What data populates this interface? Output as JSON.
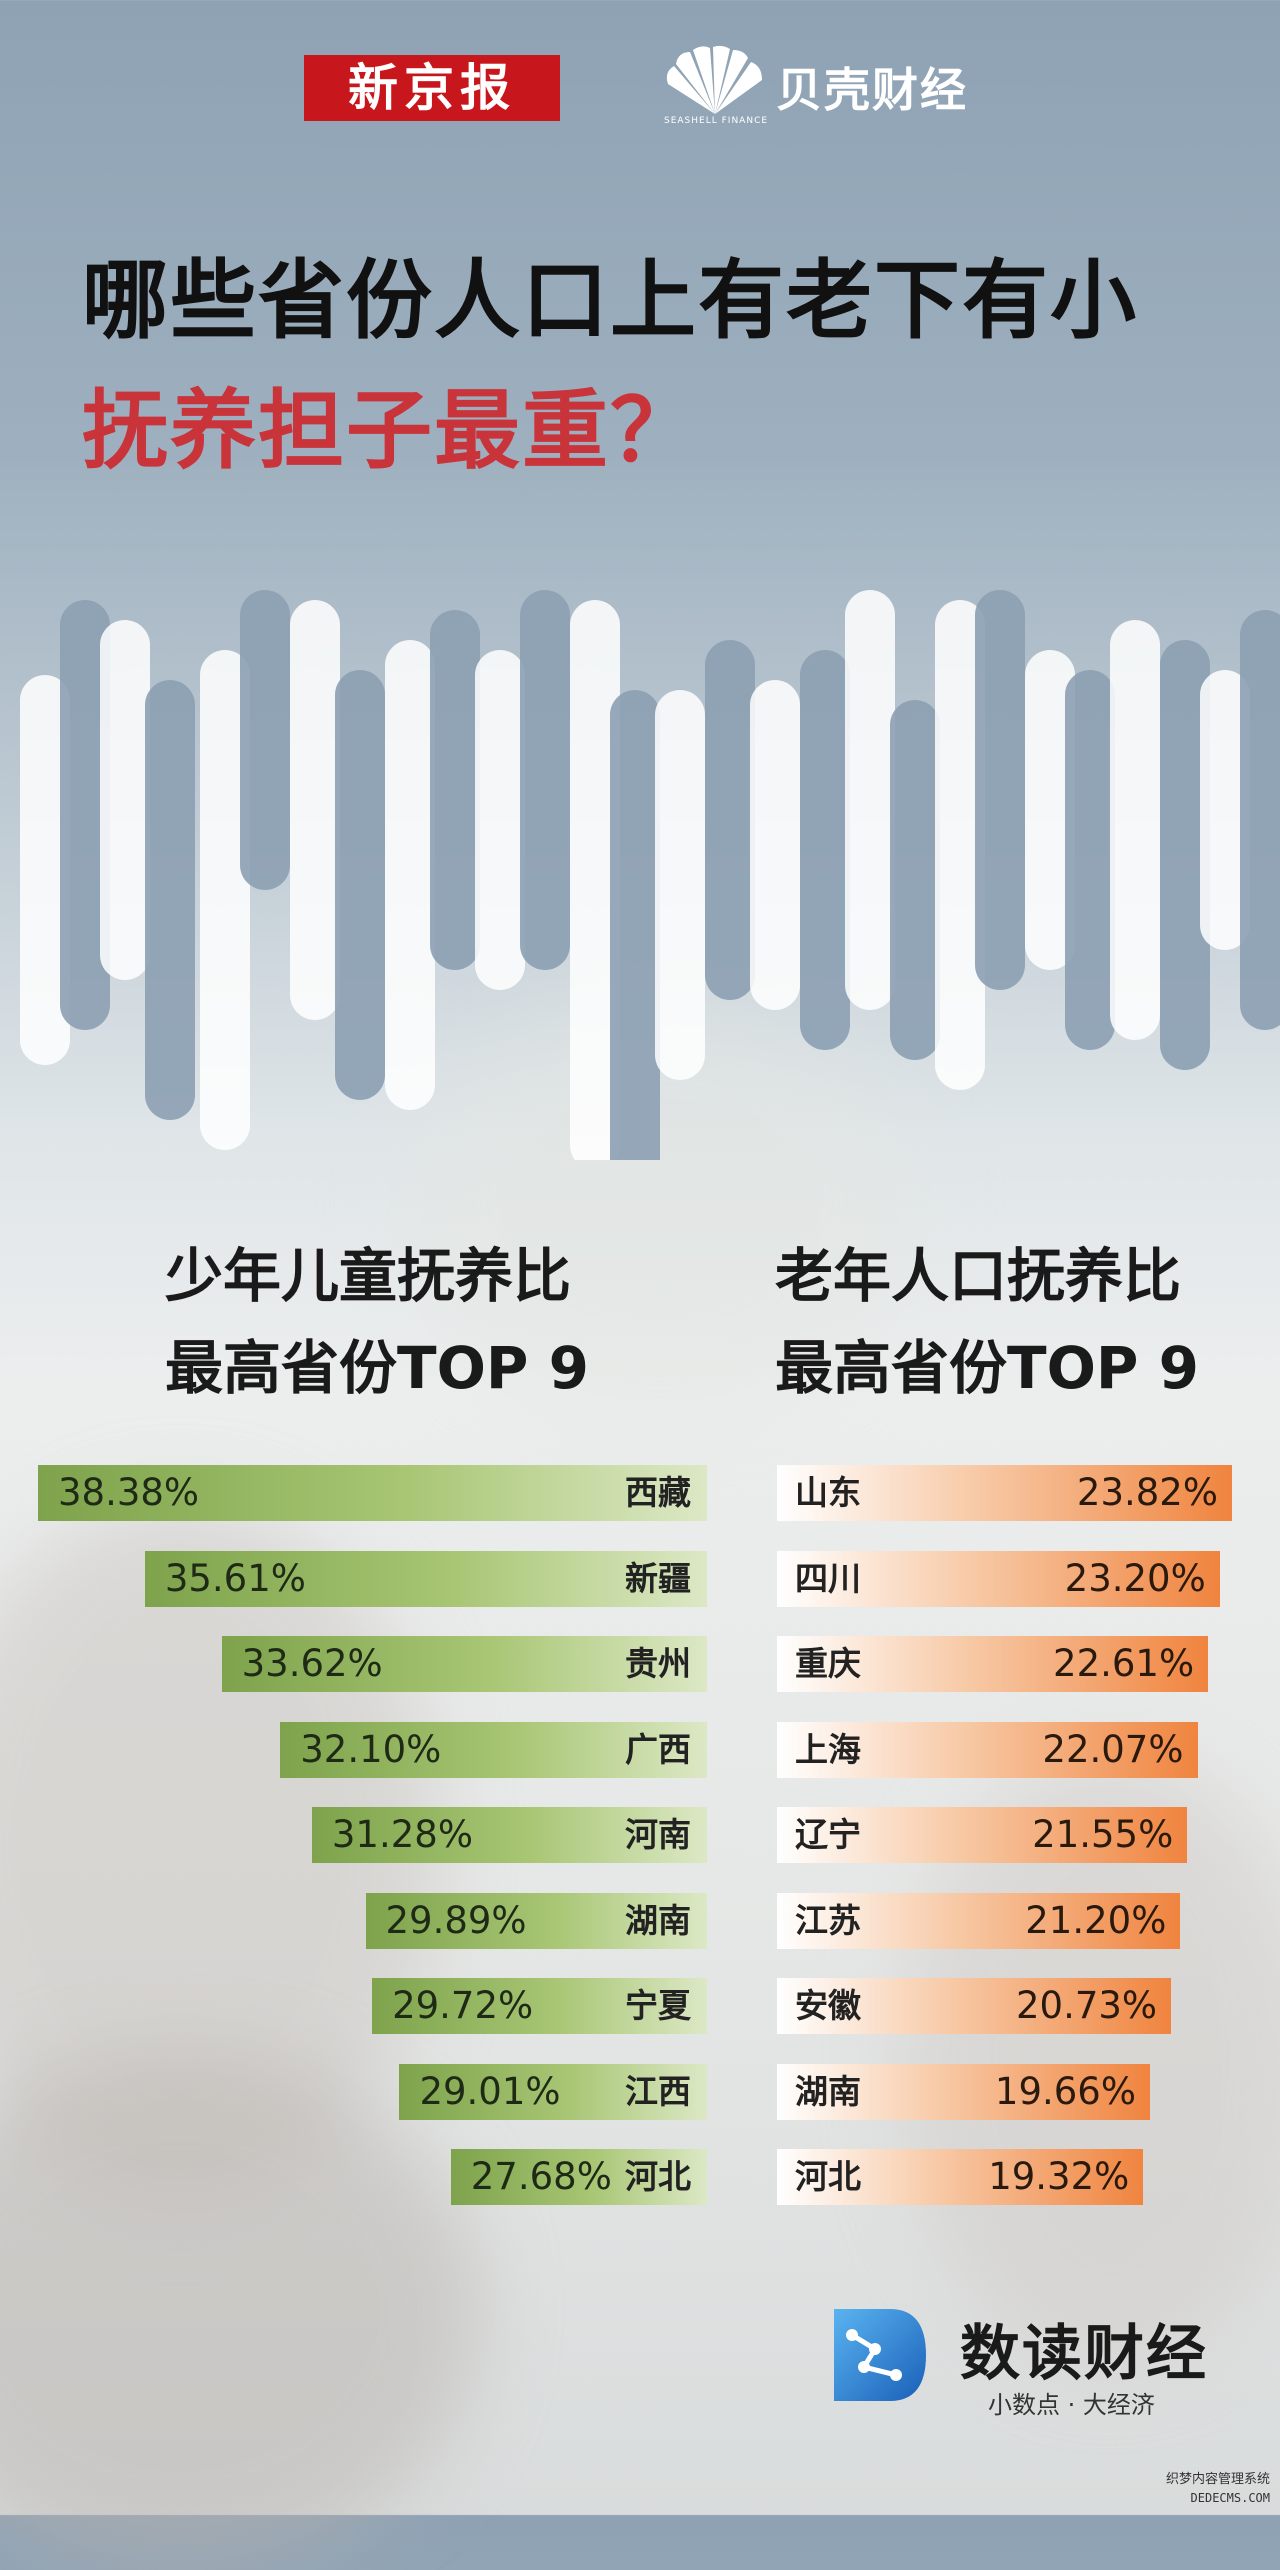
{
  "header": {
    "logo_xinjingbao": "新京报",
    "logo_beike": "贝壳财经",
    "logo_beike_sub": "SEASHELL FINANCE"
  },
  "title": {
    "line1": "哪些省份人口上有老下有小",
    "line2": "抚养担子最重？"
  },
  "colors": {
    "title_accent": "#c9333a",
    "green_bar": "#8db35a",
    "orange_bar": "#f0843f",
    "logo_red": "#c8161d"
  },
  "chart_data": [
    {
      "type": "bar",
      "orientation": "horizontal",
      "title": "少年儿童抚养比最高省份TOP 9",
      "title_lines": [
        "少年儿童抚养比",
        "最高省份TOP 9"
      ],
      "categories": [
        "西藏",
        "新疆",
        "贵州",
        "广西",
        "河南",
        "湖南",
        "宁夏",
        "江西",
        "河北"
      ],
      "values": [
        38.38,
        35.61,
        33.62,
        32.1,
        31.28,
        29.89,
        29.72,
        29.01,
        27.68
      ],
      "labels": [
        "38.38%",
        "35.61%",
        "33.62%",
        "32.10%",
        "31.28%",
        "29.89%",
        "29.72%",
        "29.01%",
        "27.68%"
      ],
      "unit": "%",
      "color": "#8db35a"
    },
    {
      "type": "bar",
      "orientation": "horizontal",
      "title": "老年人口抚养比最高省份TOP 9",
      "title_lines": [
        "老年人口抚养比",
        "最高省份TOP 9"
      ],
      "categories": [
        "山东",
        "四川",
        "重庆",
        "上海",
        "辽宁",
        "江苏",
        "安徽",
        "湖南",
        "河北"
      ],
      "values": [
        23.82,
        23.2,
        22.61,
        22.07,
        21.55,
        21.2,
        20.73,
        19.66,
        19.32
      ],
      "labels": [
        "23.82%",
        "23.20%",
        "22.61%",
        "22.07%",
        "21.55%",
        "21.20%",
        "20.73%",
        "19.66%",
        "19.32%"
      ],
      "unit": "%",
      "color": "#f0843f"
    }
  ],
  "footer": {
    "brand": "数读财经",
    "slogan": "小数点 · 大经济",
    "watermark_cn": "织梦内容管理系统",
    "watermark_en": "DEDECMS.COM"
  }
}
